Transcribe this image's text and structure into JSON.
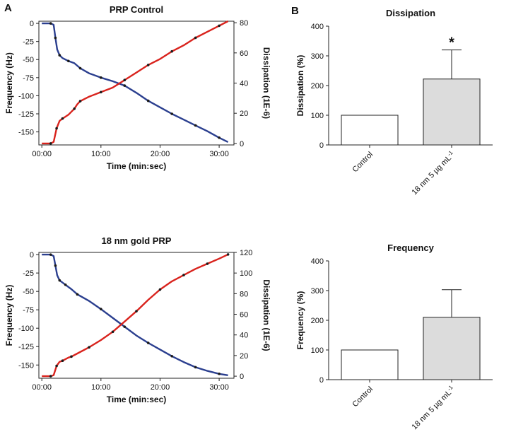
{
  "panel_labels": {
    "a": "A",
    "b": "B"
  },
  "colors": {
    "frequency": "#2b3f8f",
    "dissipation": "#d9231d",
    "control_bar": "#ffffff",
    "treated_bar": "#dcdcdc",
    "marker": "#1a1a1a"
  },
  "chart_data": [
    {
      "type": "line",
      "title": "PRP Control",
      "xlabel": "Time (min:sec)",
      "ylabel": "Frequency (Hz)",
      "y2label": "Dissipation (1E-6)",
      "x_ticks": [
        0,
        10,
        20,
        30
      ],
      "x_tick_labels": [
        "00:00",
        "10:00",
        "20:00",
        "30:00"
      ],
      "xlim": [
        -0.5,
        32.5
      ],
      "ylim": [
        -168,
        3
      ],
      "y_ticks": [
        0,
        -25,
        -50,
        -75,
        -100,
        -125,
        -150
      ],
      "y_tick_labels": [
        "0",
        "-25",
        "-50",
        "-75",
        "-100",
        "-125",
        "-150"
      ],
      "y2lim": [
        -1,
        81
      ],
      "y2_ticks": [
        0,
        20,
        40,
        60,
        80
      ],
      "y2_tick_labels": [
        "0",
        "20",
        "40",
        "60",
        "80"
      ],
      "series": [
        {
          "name": "Frequency",
          "axis": "left",
          "x": [
            0,
            1.5,
            2,
            2.3,
            2.6,
            3,
            3.5,
            4.5,
            5.5,
            6.5,
            8,
            10,
            12,
            14,
            16,
            18,
            20,
            22,
            24,
            26,
            28,
            30,
            31.5
          ],
          "y": [
            0,
            0,
            -2,
            -20,
            -36,
            -44,
            -48,
            -52,
            -55,
            -62,
            -69,
            -75,
            -80,
            -86,
            -96,
            -107,
            -116,
            -125,
            -133,
            -141,
            -149,
            -158,
            -164
          ]
        },
        {
          "name": "Dissipation",
          "axis": "right",
          "x": [
            0,
            1.5,
            2,
            2.5,
            3,
            3.5,
            4.5,
            5.5,
            6,
            6.5,
            8,
            10,
            12,
            14,
            16,
            18,
            20,
            22,
            24,
            26,
            28,
            30,
            31.5
          ],
          "y": [
            0,
            0,
            1,
            10,
            15,
            16.5,
            19,
            23,
            26,
            28,
            31,
            34,
            37,
            42,
            47,
            52,
            56,
            61,
            65,
            70,
            74,
            78,
            81
          ]
        }
      ]
    },
    {
      "type": "line",
      "title": "18 nm gold PRP",
      "xlabel": "Time (min:sec)",
      "ylabel": "Frequency (Hz)",
      "y2label": "Dissipation (1E-6)",
      "x_ticks": [
        0,
        10,
        20,
        30
      ],
      "x_tick_labels": [
        "00:00",
        "10:00",
        "20:00",
        "30:00"
      ],
      "xlim": [
        -0.5,
        32.5
      ],
      "ylim": [
        -168,
        3
      ],
      "y_ticks": [
        0,
        -25,
        -50,
        -75,
        -100,
        -125,
        -150
      ],
      "y_tick_labels": [
        "0",
        "-25",
        "-50",
        "-75",
        "-100",
        "-125",
        "-150"
      ],
      "y2lim": [
        -2,
        120
      ],
      "y2_ticks": [
        0,
        20,
        40,
        60,
        80,
        100,
        120
      ],
      "y2_tick_labels": [
        "0",
        "20",
        "40",
        "60",
        "80",
        "100",
        "120"
      ],
      "series": [
        {
          "name": "Frequency",
          "axis": "left",
          "x": [
            0,
            1.5,
            2,
            2.3,
            2.6,
            3,
            3.5,
            4,
            5,
            6,
            8,
            10,
            12,
            14,
            16,
            18,
            20,
            22,
            24,
            26,
            28,
            30,
            31.5
          ],
          "y": [
            0,
            0,
            -2,
            -15,
            -28,
            -35,
            -38,
            -41,
            -47,
            -54,
            -63,
            -74,
            -86,
            -98,
            -110,
            -120,
            -129,
            -138,
            -146,
            -153,
            -158,
            -162,
            -164
          ]
        },
        {
          "name": "Dissipation",
          "axis": "right",
          "x": [
            0,
            1.5,
            2,
            2.5,
            3,
            3.5,
            4.5,
            5,
            6,
            8,
            10,
            12,
            14,
            16,
            18,
            20,
            22,
            24,
            26,
            28,
            30,
            31.5
          ],
          "y": [
            0,
            0,
            1,
            10,
            14,
            15,
            18,
            19,
            22,
            28,
            35,
            43,
            53,
            63,
            74,
            84,
            92,
            98,
            104,
            109,
            114,
            118
          ]
        }
      ]
    },
    {
      "type": "bar",
      "title": "Dissipation",
      "ylabel": "Dissipation (%)",
      "categories": [
        "Control",
        "18 nm 5 µg mL"
      ],
      "category_superscripts": [
        "",
        "-1"
      ],
      "values": [
        100,
        222
      ],
      "errors": [
        0,
        98
      ],
      "significance": [
        "",
        "*"
      ],
      "ylim": [
        0,
        400
      ],
      "y_ticks": [
        0,
        100,
        200,
        300,
        400
      ],
      "y_tick_labels": [
        "0",
        "100",
        "200",
        "300",
        "400"
      ]
    },
    {
      "type": "bar",
      "title": "Frequency",
      "ylabel": "Frequency (%)",
      "categories": [
        "Control",
        "18 nm 5 µg mL"
      ],
      "category_superscripts": [
        "",
        "-1"
      ],
      "values": [
        100,
        210
      ],
      "errors": [
        0,
        93
      ],
      "significance": [
        "",
        ""
      ],
      "ylim": [
        0,
        400
      ],
      "y_ticks": [
        0,
        100,
        200,
        300,
        400
      ],
      "y_tick_labels": [
        "0",
        "100",
        "200",
        "300",
        "400"
      ]
    }
  ]
}
